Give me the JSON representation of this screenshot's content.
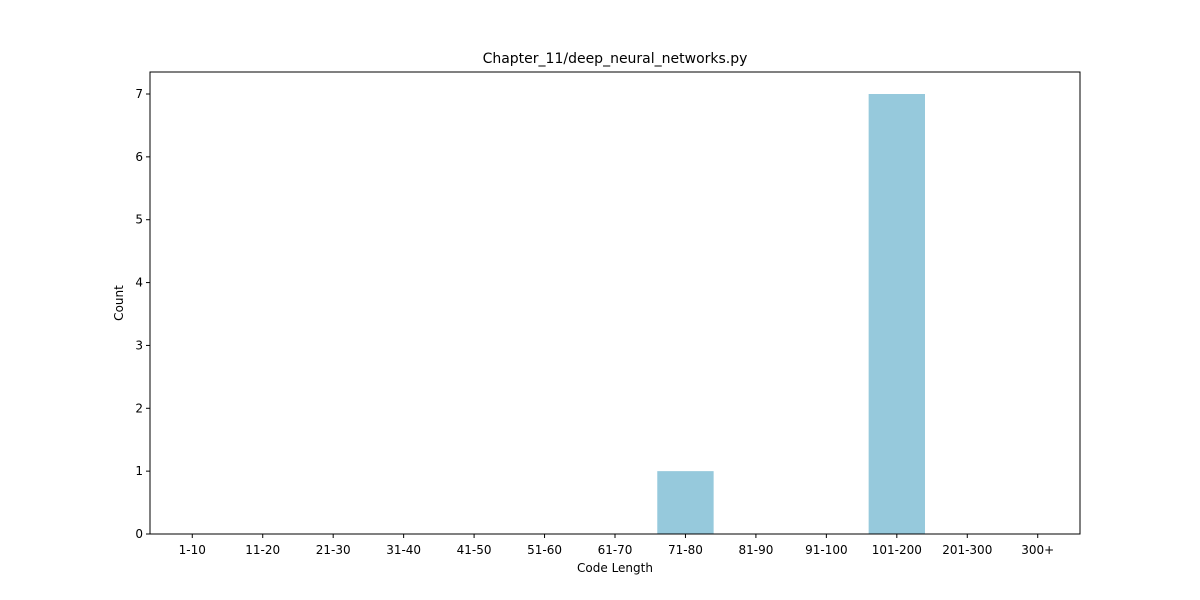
{
  "chart_data": {
    "type": "bar",
    "title": "Chapter_11/deep_neural_networks.py",
    "xlabel": "Code Length",
    "ylabel": "Count",
    "categories": [
      "1-10",
      "11-20",
      "21-30",
      "31-40",
      "41-50",
      "51-60",
      "61-70",
      "71-80",
      "81-90",
      "91-100",
      "101-200",
      "201-300",
      "300+"
    ],
    "values": [
      0,
      0,
      0,
      0,
      0,
      0,
      0,
      1,
      0,
      0,
      7,
      0,
      0
    ],
    "ylim": [
      0,
      7.35
    ],
    "yticks": [
      0,
      1,
      2,
      3,
      4,
      5,
      6,
      7
    ],
    "bar_color": "#96c9dc",
    "grid": false,
    "legend": "none"
  }
}
